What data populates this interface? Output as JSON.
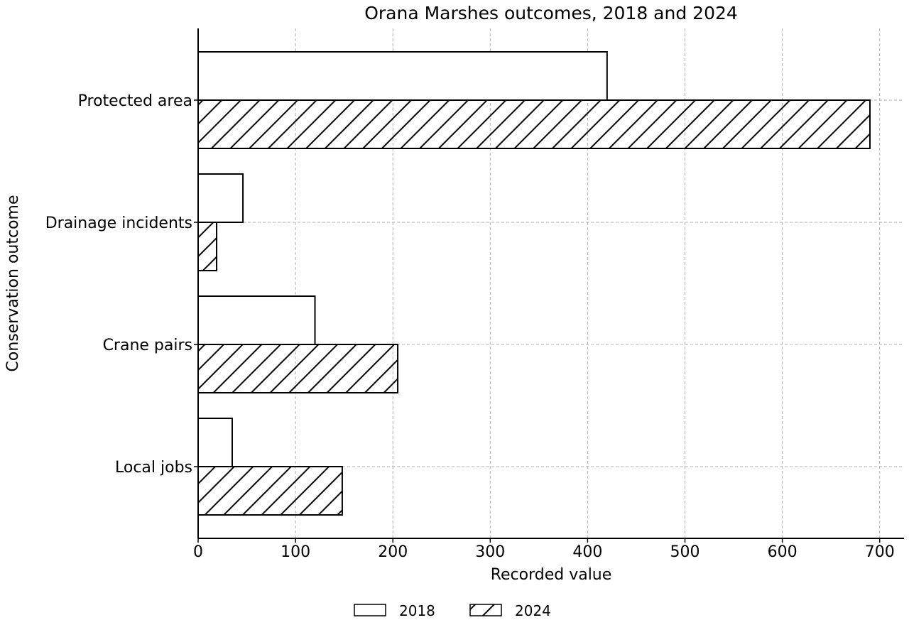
{
  "chart_data": {
    "type": "bar",
    "orientation": "horizontal",
    "title": "Orana Marshes outcomes, 2018 and 2024",
    "xlabel": "Recorded value",
    "ylabel": "Conservation outcome",
    "categories": [
      "Protected area",
      "Drainage incidents",
      "Crane pairs",
      "Local jobs"
    ],
    "series": [
      {
        "name": "2018",
        "values": [
          420,
          46,
          120,
          35
        ],
        "fill": "#ffffff",
        "pattern": "none"
      },
      {
        "name": "2024",
        "values": [
          690,
          19,
          205,
          148
        ],
        "fill": "#ffffff",
        "pattern": "diagonal-hatch"
      }
    ],
    "xlim": [
      0,
      725
    ],
    "xticks": [
      0,
      100,
      200,
      300,
      400,
      500,
      600,
      700
    ],
    "grid": true,
    "legend_position": "bottom-center",
    "colors": {
      "stroke": "#000000",
      "grid": "#b0b0b0",
      "background": "#ffffff"
    }
  }
}
